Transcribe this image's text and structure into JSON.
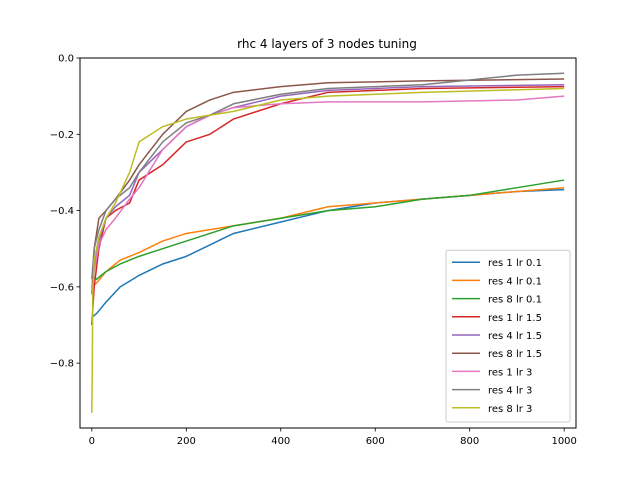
{
  "chart_data": {
    "type": "line",
    "title": "rhc 4 layers of 3 nodes tuning",
    "xlabel": "",
    "ylabel": "",
    "xlim": [
      -25,
      1025
    ],
    "ylim": [
      -0.97,
      0.0
    ],
    "x_ticks": [
      0,
      200,
      400,
      600,
      800,
      1000
    ],
    "x_tick_labels": [
      "0",
      "200",
      "400",
      "600",
      "800",
      "1000"
    ],
    "y_ticks": [
      0.0,
      -0.2,
      -0.4,
      -0.6,
      -0.8
    ],
    "y_tick_labels": [
      "0.0",
      "−0.2",
      "−0.4",
      "−0.6",
      "−0.8"
    ],
    "grid": false,
    "legend_position": "lower right",
    "series": [
      {
        "name": "res 1 lr 0.1",
        "color": "#1f77b4",
        "x": [
          0,
          10,
          30,
          60,
          100,
          150,
          200,
          250,
          300,
          400,
          500,
          600,
          700,
          800,
          900,
          1000
        ],
        "y": [
          -0.68,
          -0.67,
          -0.64,
          -0.6,
          -0.57,
          -0.54,
          -0.52,
          -0.49,
          -0.46,
          -0.43,
          -0.4,
          -0.38,
          -0.37,
          -0.36,
          -0.35,
          -0.345
        ]
      },
      {
        "name": "res 4 lr 0.1",
        "color": "#ff7f0e",
        "x": [
          0,
          10,
          30,
          60,
          100,
          150,
          200,
          250,
          300,
          400,
          500,
          600,
          700,
          800,
          900,
          1000
        ],
        "y": [
          -0.6,
          -0.59,
          -0.56,
          -0.53,
          -0.51,
          -0.48,
          -0.46,
          -0.45,
          -0.44,
          -0.42,
          -0.39,
          -0.38,
          -0.37,
          -0.36,
          -0.35,
          -0.34
        ]
      },
      {
        "name": "res 8 lr 0.1",
        "color": "#2ca02c",
        "x": [
          0,
          10,
          30,
          60,
          100,
          150,
          200,
          250,
          300,
          400,
          500,
          600,
          700,
          800,
          900,
          1000
        ],
        "y": [
          -0.57,
          -0.58,
          -0.56,
          -0.54,
          -0.52,
          -0.5,
          -0.48,
          -0.46,
          -0.44,
          -0.42,
          -0.4,
          -0.39,
          -0.37,
          -0.36,
          -0.34,
          -0.32
        ]
      },
      {
        "name": "res 1 lr 1.5",
        "color": "#d62728",
        "x": [
          0,
          5,
          15,
          30,
          50,
          80,
          100,
          150,
          200,
          250,
          300,
          400,
          500,
          700,
          1000
        ],
        "y": [
          -0.7,
          -0.6,
          -0.5,
          -0.42,
          -0.4,
          -0.38,
          -0.32,
          -0.28,
          -0.22,
          -0.2,
          -0.16,
          -0.12,
          -0.09,
          -0.08,
          -0.075
        ]
      },
      {
        "name": "res 4 lr 1.5",
        "color": "#9467bd",
        "x": [
          0,
          5,
          15,
          30,
          50,
          80,
          100,
          150,
          200,
          250,
          300,
          400,
          500,
          700,
          1000
        ],
        "y": [
          -0.62,
          -0.55,
          -0.48,
          -0.42,
          -0.39,
          -0.36,
          -0.3,
          -0.24,
          -0.18,
          -0.15,
          -0.13,
          -0.1,
          -0.085,
          -0.075,
          -0.07
        ]
      },
      {
        "name": "res 8 lr 1.5",
        "color": "#8c564b",
        "x": [
          0,
          5,
          15,
          30,
          50,
          80,
          100,
          150,
          200,
          250,
          300,
          400,
          500,
          700,
          1000
        ],
        "y": [
          -0.62,
          -0.5,
          -0.42,
          -0.4,
          -0.37,
          -0.32,
          -0.28,
          -0.2,
          -0.14,
          -0.11,
          -0.09,
          -0.075,
          -0.065,
          -0.06,
          -0.055
        ]
      },
      {
        "name": "res 1 lr 3",
        "color": "#e377c2",
        "x": [
          0,
          5,
          15,
          30,
          50,
          80,
          100,
          150,
          200,
          250,
          300,
          400,
          500,
          700,
          900,
          1000
        ],
        "y": [
          -0.62,
          -0.56,
          -0.49,
          -0.45,
          -0.42,
          -0.37,
          -0.34,
          -0.24,
          -0.18,
          -0.15,
          -0.13,
          -0.12,
          -0.115,
          -0.115,
          -0.11,
          -0.1
        ]
      },
      {
        "name": "res 4 lr 3",
        "color": "#7f7f7f",
        "x": [
          0,
          5,
          15,
          30,
          50,
          80,
          100,
          150,
          200,
          250,
          300,
          400,
          500,
          700,
          900,
          1000
        ],
        "y": [
          -0.58,
          -0.5,
          -0.45,
          -0.4,
          -0.37,
          -0.34,
          -0.3,
          -0.22,
          -0.17,
          -0.15,
          -0.12,
          -0.095,
          -0.08,
          -0.07,
          -0.045,
          -0.04
        ]
      },
      {
        "name": "res 8 lr 3",
        "color": "#bcbd22",
        "x": [
          0,
          1,
          2,
          5,
          15,
          30,
          50,
          80,
          100,
          150,
          200,
          300,
          400,
          500,
          700,
          1000
        ],
        "y": [
          -0.93,
          -0.82,
          -0.62,
          -0.53,
          -0.47,
          -0.42,
          -0.38,
          -0.3,
          -0.22,
          -0.18,
          -0.16,
          -0.14,
          -0.11,
          -0.1,
          -0.09,
          -0.08
        ]
      }
    ]
  }
}
